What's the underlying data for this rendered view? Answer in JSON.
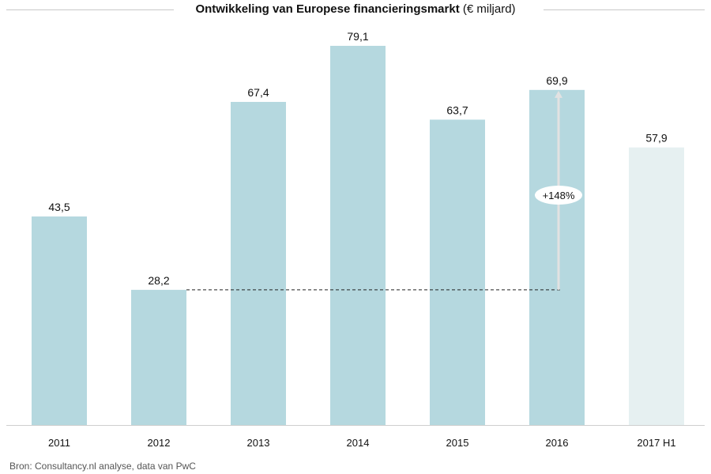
{
  "chart_data": {
    "type": "bar",
    "title": "Ontwikkeling van Europese financieringsmarkt",
    "title_unit": "(€ miljard)",
    "categories": [
      "2011",
      "2012",
      "2013",
      "2014",
      "2015",
      "2016",
      "2017 H1"
    ],
    "values": [
      43.5,
      28.2,
      67.4,
      79.1,
      63.7,
      69.9,
      57.9
    ],
    "value_labels": [
      "43,5",
      "28,2",
      "67,4",
      "79,1",
      "63,7",
      "69,9",
      "57,9"
    ],
    "ylim": [
      0,
      79.1
    ],
    "grid": false,
    "colors": {
      "bar": "#b5d8df",
      "bar_partial": "#e6f0f1"
    },
    "annotation": {
      "label": "+148%",
      "from": "2012",
      "to": "2016"
    },
    "source": "Bron: Consultancy.nl analyse, data van PwC"
  }
}
